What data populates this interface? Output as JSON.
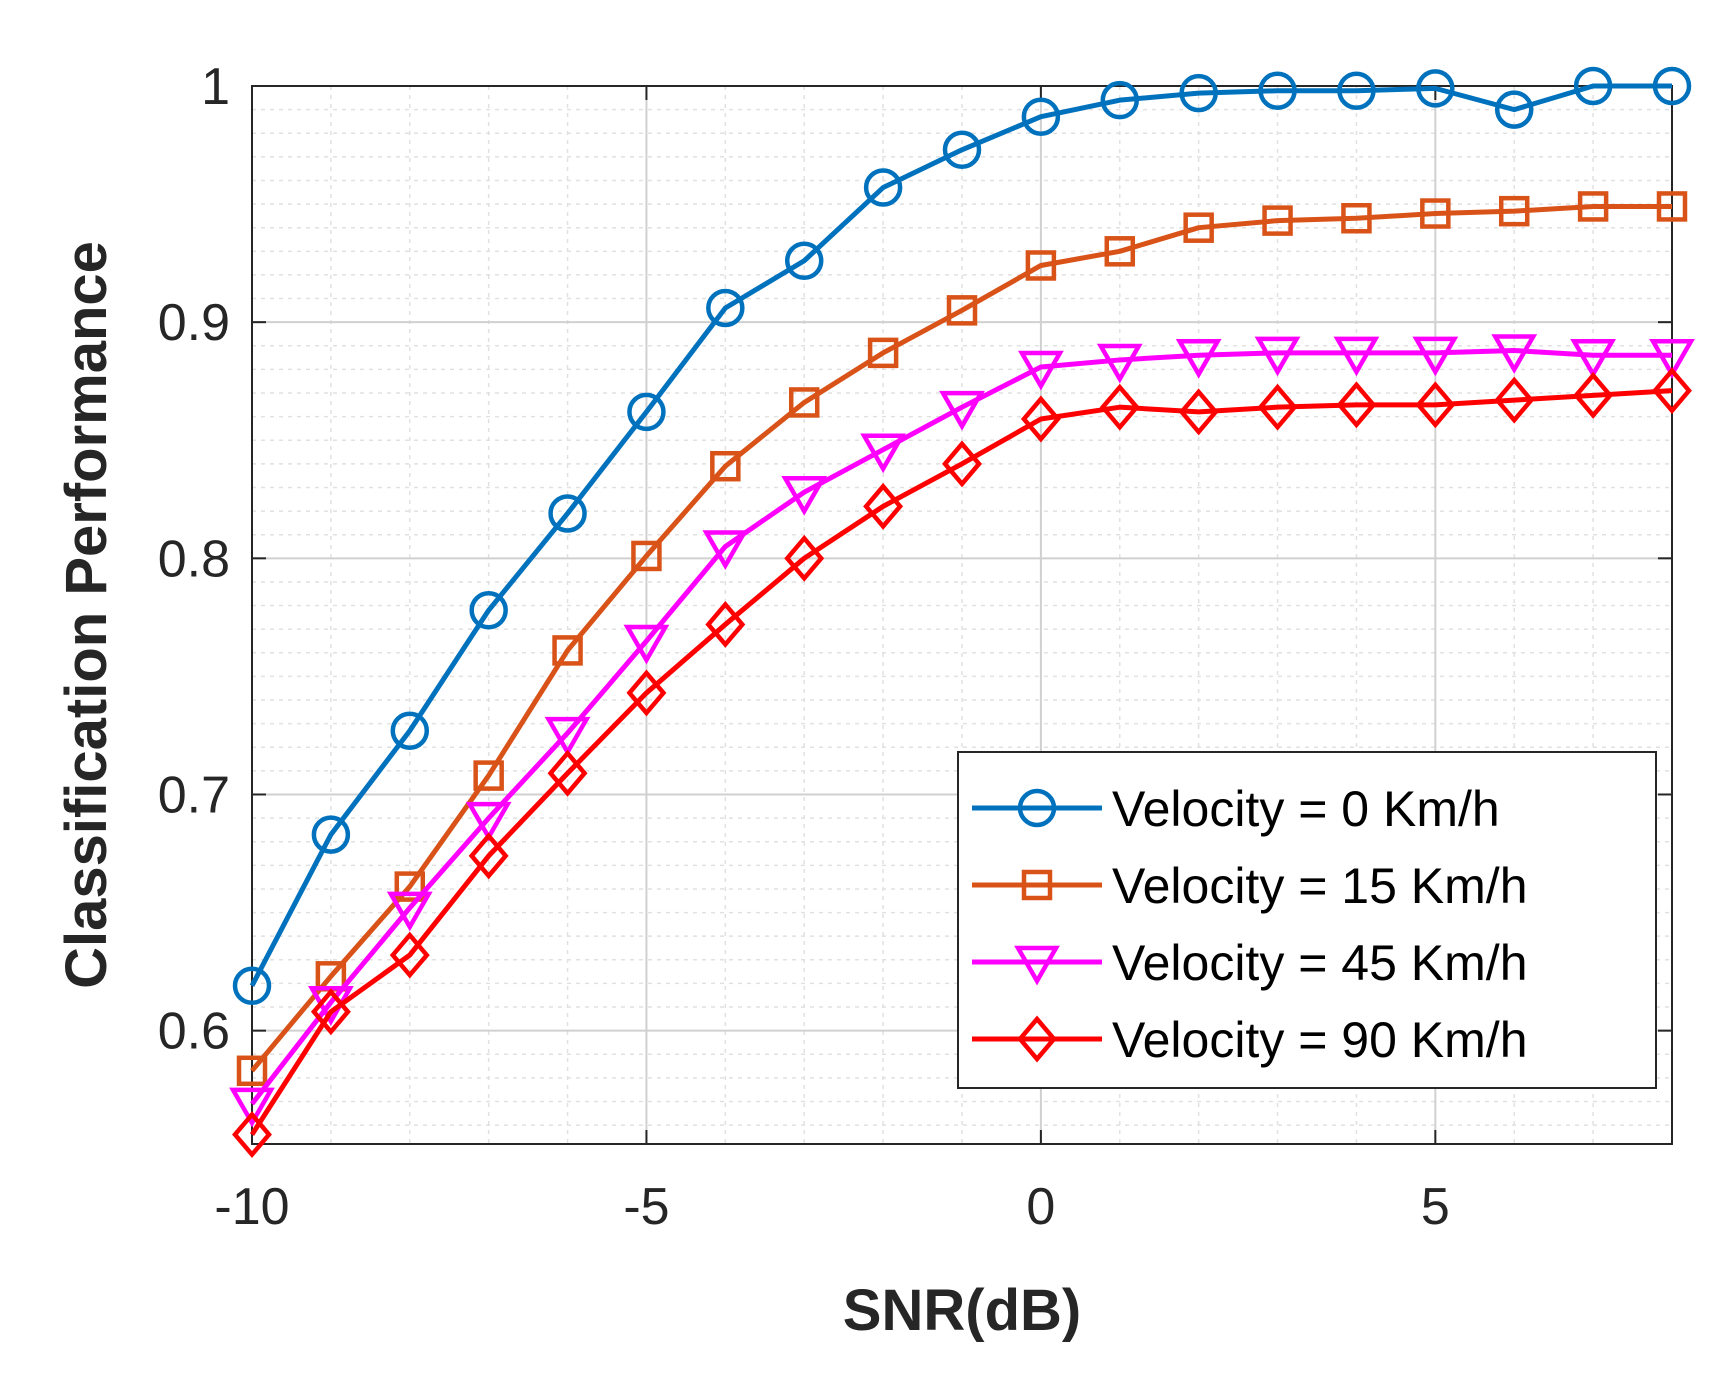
{
  "chart_data": {
    "type": "line",
    "title": "",
    "xlabel": "SNR(dB)",
    "ylabel": "Classification Performance",
    "xlim": [
      -10,
      8
    ],
    "ylim": [
      0.552,
      1.0
    ],
    "xticks": [
      -10,
      -5,
      0,
      5
    ],
    "yticks": [
      0.6,
      0.7,
      0.8,
      0.9,
      1.0
    ],
    "xtick_labels": [
      "-10",
      "-5",
      "0",
      "5"
    ],
    "ytick_labels": [
      "0.6",
      "0.7",
      "0.8",
      "0.9",
      "1"
    ],
    "grid": true,
    "minor_grid": true,
    "legend_position": "bottom-right",
    "x": [
      -10,
      -9,
      -8,
      -7,
      -6,
      -5,
      -4,
      -3,
      -2,
      -1,
      0,
      1,
      2,
      3,
      4,
      5,
      6,
      7,
      8
    ],
    "series": [
      {
        "name": "Velocity = 0 Km/h",
        "color": "#0072BD",
        "marker": "circle",
        "values": [
          0.619,
          0.683,
          0.727,
          0.778,
          0.819,
          0.862,
          0.906,
          0.926,
          0.957,
          0.973,
          0.987,
          0.994,
          0.997,
          0.998,
          0.998,
          0.999,
          0.99,
          1.0,
          1.0
        ]
      },
      {
        "name": "Velocity = 15 Km/h",
        "color": "#D95319",
        "marker": "square",
        "values": [
          0.583,
          0.623,
          0.661,
          0.708,
          0.761,
          0.801,
          0.839,
          0.866,
          0.887,
          0.905,
          0.924,
          0.93,
          0.94,
          0.943,
          0.944,
          0.946,
          0.947,
          0.949,
          0.949
        ]
      },
      {
        "name": "Velocity = 45 Km/h",
        "color": "#FF00FF",
        "marker": "triangle-down",
        "values": [
          0.569,
          0.612,
          0.652,
          0.69,
          0.726,
          0.765,
          0.805,
          0.828,
          0.846,
          0.864,
          0.881,
          0.884,
          0.886,
          0.887,
          0.887,
          0.887,
          0.888,
          0.886,
          0.886
        ]
      },
      {
        "name": "Velocity = 90 Km/h",
        "color": "#FF0000",
        "marker": "diamond",
        "values": [
          0.556,
          0.608,
          0.632,
          0.674,
          0.709,
          0.743,
          0.772,
          0.8,
          0.822,
          0.84,
          0.859,
          0.864,
          0.862,
          0.864,
          0.865,
          0.865,
          0.867,
          0.869,
          0.871
        ]
      }
    ]
  }
}
